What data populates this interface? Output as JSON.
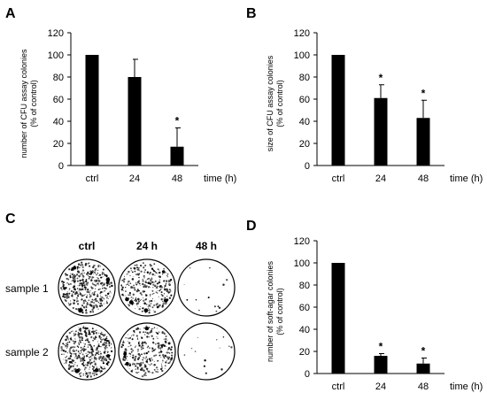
{
  "chart_data": [
    {
      "panel": "A",
      "type": "bar",
      "categories": [
        "ctrl",
        "24",
        "48"
      ],
      "values": [
        100,
        80,
        17
      ],
      "errors": [
        0,
        16,
        17
      ],
      "significance": [
        "",
        "",
        "*"
      ],
      "ylabel_lines": [
        "number of CFU assay colonies",
        "(% of control)"
      ],
      "xunit": "time (h)",
      "ylim": [
        0,
        120
      ],
      "yticks": [
        0,
        20,
        40,
        60,
        80,
        100,
        120
      ]
    },
    {
      "panel": "B",
      "type": "bar",
      "categories": [
        "ctrl",
        "24",
        "48"
      ],
      "values": [
        100,
        61,
        43
      ],
      "errors": [
        0,
        12,
        16
      ],
      "significance": [
        "",
        "*",
        "*"
      ],
      "ylabel_lines": [
        "size of CFU assay colonies",
        "(% of control)"
      ],
      "xunit": "time (h)",
      "ylim": [
        0,
        120
      ],
      "yticks": [
        0,
        20,
        40,
        60,
        80,
        100,
        120
      ]
    },
    {
      "panel": "D",
      "type": "bar",
      "categories": [
        "ctrl",
        "24",
        "48"
      ],
      "values": [
        100,
        16,
        9
      ],
      "errors": [
        0,
        2,
        5
      ],
      "significance": [
        "",
        "*",
        "*"
      ],
      "ylabel_lines": [
        "number of soft-agar colonies",
        "(% of control)"
      ],
      "xunit": "time (h)",
      "ylim": [
        0,
        120
      ],
      "yticks": [
        0,
        20,
        40,
        60,
        80,
        100,
        120
      ]
    }
  ],
  "panel_c": {
    "letter": "C",
    "columns": [
      "ctrl",
      "24 h",
      "48 h"
    ],
    "rows": [
      "sample 1",
      "sample 2"
    ],
    "colony_density": [
      [
        1.0,
        0.7,
        0.03
      ],
      [
        1.0,
        0.7,
        0.03
      ]
    ]
  },
  "colors": {
    "bar": "#000000",
    "axis": "#000000",
    "dish": "#000000"
  }
}
